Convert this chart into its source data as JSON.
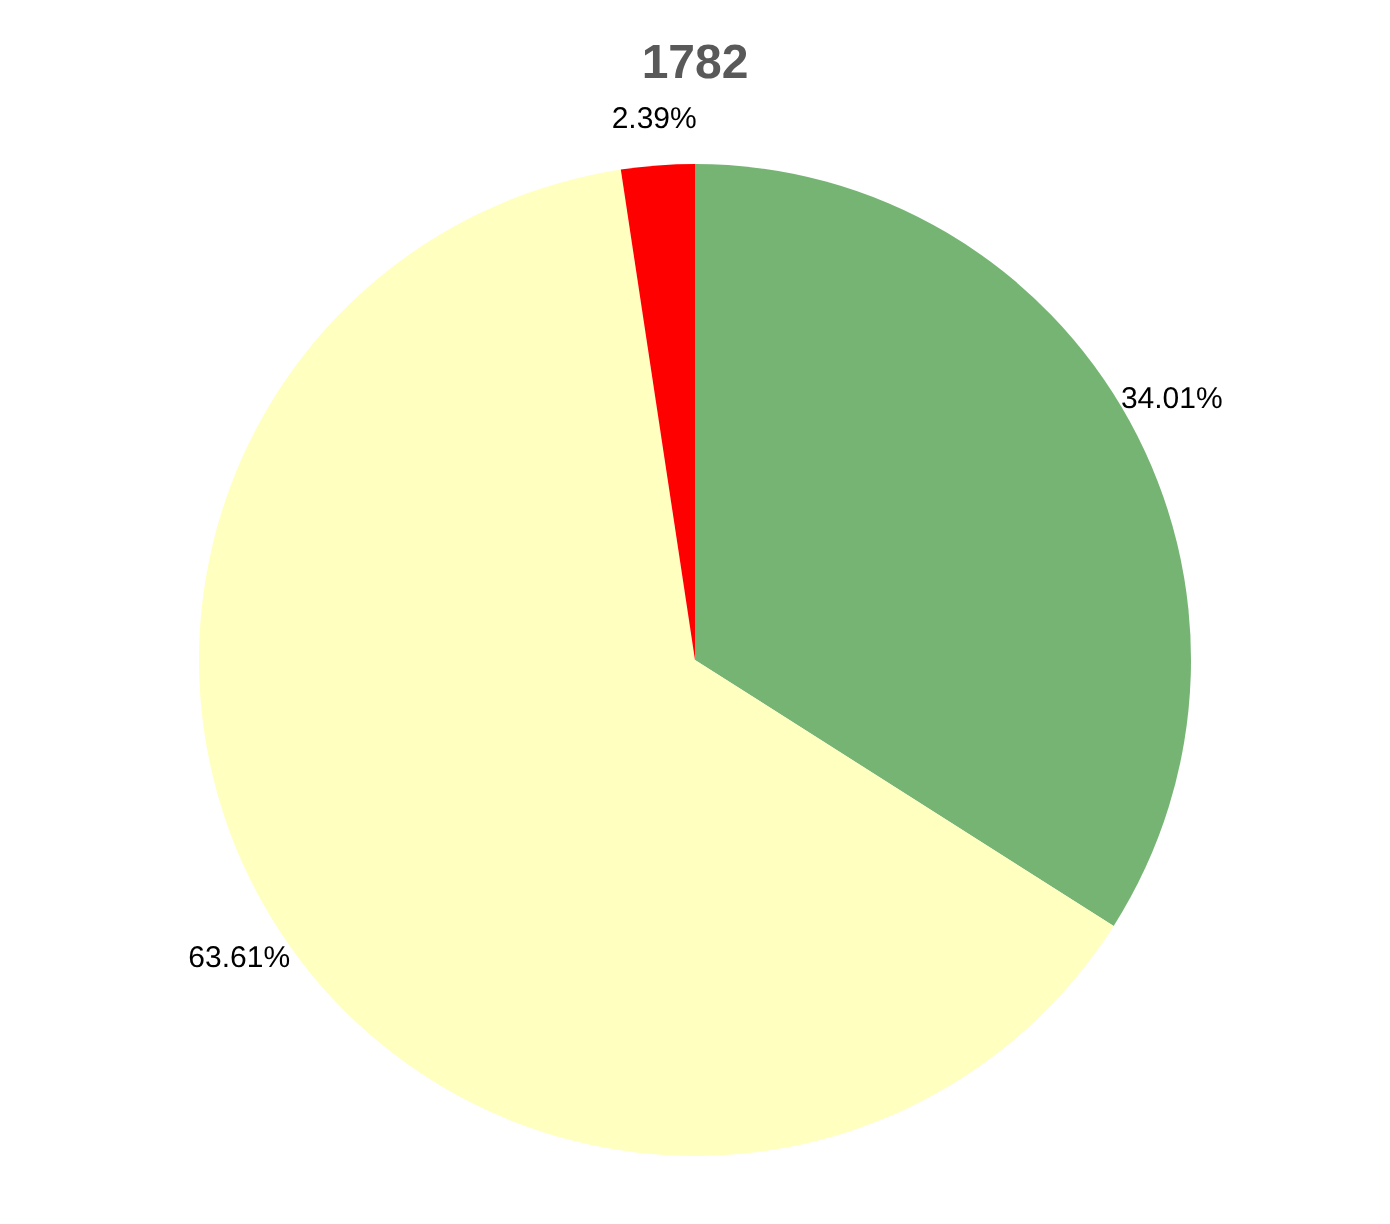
{
  "chart_data": {
    "type": "pie",
    "title": "1782",
    "categories": [
      null,
      null,
      null
    ],
    "values": [
      34.01,
      63.61,
      2.39
    ],
    "colors": [
      "#76b474",
      "#ffffc0",
      "#ff0000"
    ],
    "value_labels": [
      "34.01%",
      "63.61%",
      "2.39%"
    ],
    "legend": false
  }
}
